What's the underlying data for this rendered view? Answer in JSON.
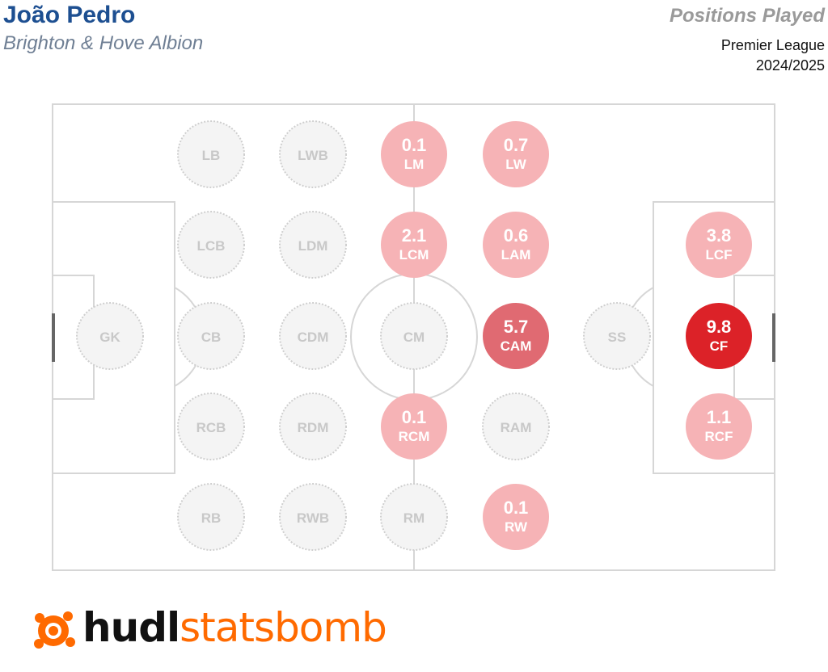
{
  "header": {
    "player": "João Pedro",
    "team": "Brighton & Hove Albion",
    "title": "Positions Played",
    "competition": "Premier League",
    "season": "2024/2025"
  },
  "chart_data": {
    "type": "scatter",
    "title": "Positions Played",
    "x_axis": "pitch column (1 = goalkeeper side, 7 = attacking side)",
    "y_axis": "pitch row (1 = left flank, 5 = right flank)",
    "positions": [
      {
        "label": "GK",
        "col": 1,
        "row": 3,
        "value": null
      },
      {
        "label": "LB",
        "col": 2,
        "row": 1,
        "value": null
      },
      {
        "label": "LCB",
        "col": 2,
        "row": 2,
        "value": null
      },
      {
        "label": "CB",
        "col": 2,
        "row": 3,
        "value": null
      },
      {
        "label": "RCB",
        "col": 2,
        "row": 4,
        "value": null
      },
      {
        "label": "RB",
        "col": 2,
        "row": 5,
        "value": null
      },
      {
        "label": "LWB",
        "col": 3,
        "row": 1,
        "value": null
      },
      {
        "label": "LDM",
        "col": 3,
        "row": 2,
        "value": null
      },
      {
        "label": "CDM",
        "col": 3,
        "row": 3,
        "value": null
      },
      {
        "label": "RDM",
        "col": 3,
        "row": 4,
        "value": null
      },
      {
        "label": "RWB",
        "col": 3,
        "row": 5,
        "value": null
      },
      {
        "label": "LM",
        "col": 4,
        "row": 1,
        "value": 0.1
      },
      {
        "label": "LCM",
        "col": 4,
        "row": 2,
        "value": 2.1
      },
      {
        "label": "CM",
        "col": 4,
        "row": 3,
        "value": null
      },
      {
        "label": "RCM",
        "col": 4,
        "row": 4,
        "value": 0.1
      },
      {
        "label": "RM",
        "col": 4,
        "row": 5,
        "value": null
      },
      {
        "label": "LW",
        "col": 5,
        "row": 1,
        "value": 0.7
      },
      {
        "label": "LAM",
        "col": 5,
        "row": 2,
        "value": 0.6
      },
      {
        "label": "CAM",
        "col": 5,
        "row": 3,
        "value": 5.7
      },
      {
        "label": "RAM",
        "col": 5,
        "row": 4,
        "value": null
      },
      {
        "label": "RW",
        "col": 5,
        "row": 5,
        "value": 0.1
      },
      {
        "label": "SS",
        "col": 6,
        "row": 3,
        "value": null
      },
      {
        "label": "LCF",
        "col": 7,
        "row": 2,
        "value": 3.8
      },
      {
        "label": "CF",
        "col": 7,
        "row": 3,
        "value": 9.8
      },
      {
        "label": "RCF",
        "col": 7,
        "row": 4,
        "value": 1.1
      }
    ],
    "value_labels": {
      "LM": "0.1",
      "LCM": "2.1",
      "RCM": "0.1",
      "LW": "0.7",
      "LAM": "0.6",
      "CAM": "5.7",
      "RW": "0.1",
      "LCF": "3.8",
      "CF": "9.8",
      "RCF": "1.1"
    },
    "colors": {
      "empty_fill": "#f4f4f4",
      "empty_stroke": "#cfcfcf",
      "empty_text": "#c8c8c8",
      "low": "#f6b3b6",
      "mid": "#e06a72",
      "high": "#dc2228",
      "pitch_lines": "#d6d6d6",
      "goal": "#666666"
    }
  },
  "logo": {
    "brand_hudl": "hudl",
    "brand_sb": "statsbomb",
    "icon": "statsbomb-bomb-icon",
    "brand_color": "#ff6a00"
  }
}
